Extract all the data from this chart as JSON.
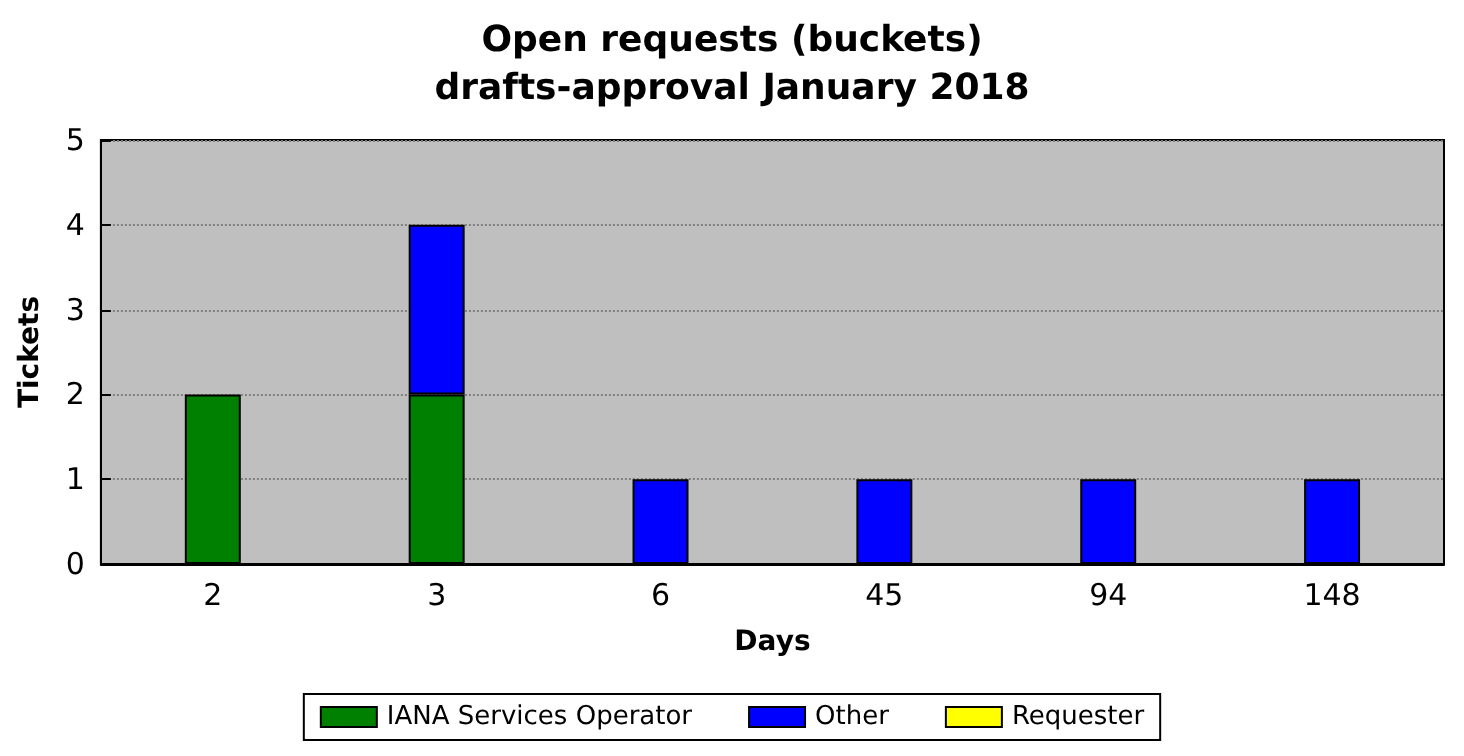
{
  "chart_data": {
    "type": "bar",
    "title": "Open requests (buckets)",
    "subtitle": "drafts-approval January 2018",
    "xlabel": "Days",
    "ylabel": "Tickets",
    "categories": [
      "2",
      "3",
      "6",
      "45",
      "94",
      "148"
    ],
    "series": [
      {
        "name": "IANA Services Operator",
        "color": "#008000",
        "values": [
          2,
          2,
          0,
          0,
          0,
          0
        ]
      },
      {
        "name": "Other",
        "color": "#0000ff",
        "values": [
          0,
          2,
          1,
          1,
          1,
          1
        ]
      },
      {
        "name": "Requester",
        "color": "#ffff00",
        "values": [
          0,
          0,
          0,
          0,
          0,
          0
        ]
      }
    ],
    "stacked": true,
    "ylim": [
      0,
      5
    ],
    "yticks": [
      0,
      1,
      2,
      3,
      4,
      5
    ],
    "grid": "y",
    "legend": "bottom"
  }
}
